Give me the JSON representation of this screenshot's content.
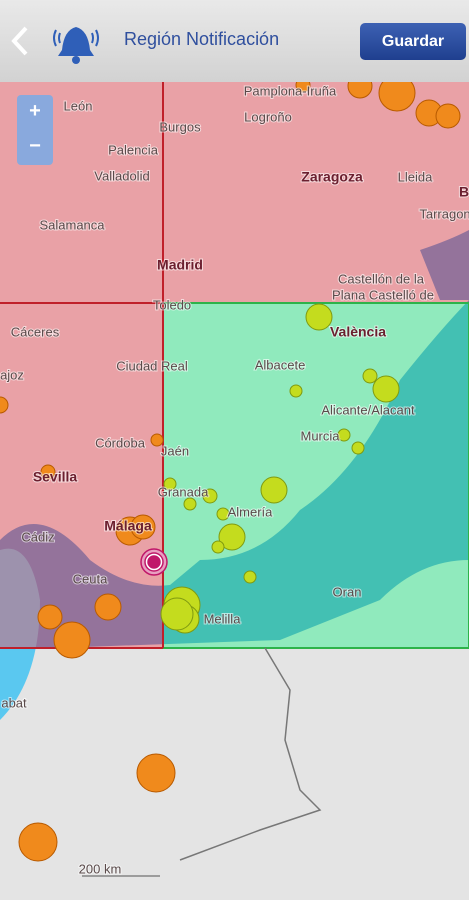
{
  "header": {
    "title": "Región Notificación",
    "save_button": "Guardar"
  },
  "zoom": {
    "in": "+",
    "out": "−"
  },
  "map": {
    "labels": [
      "León",
      "Burgos",
      "Pamplona-Iruña",
      "Logroño",
      "Palencia",
      "Valladolid",
      "Zaragoza",
      "Lleida",
      "Salamanca",
      "Madrid",
      "Tarragon",
      "B",
      "Toledo",
      "Castellón de la",
      "Plana Castelló de",
      "València",
      "Cáceres",
      "Ciudad Real",
      "Albacete",
      "ajoz",
      "Alicante/Alacant",
      "Murcia",
      "Córdoba",
      "Jaén",
      "Sevilla",
      "Granada",
      "Almería",
      "Cádiz",
      "Málaga",
      "Ceuta",
      "Melilla",
      "Oran",
      "abat",
      "200 km"
    ]
  }
}
